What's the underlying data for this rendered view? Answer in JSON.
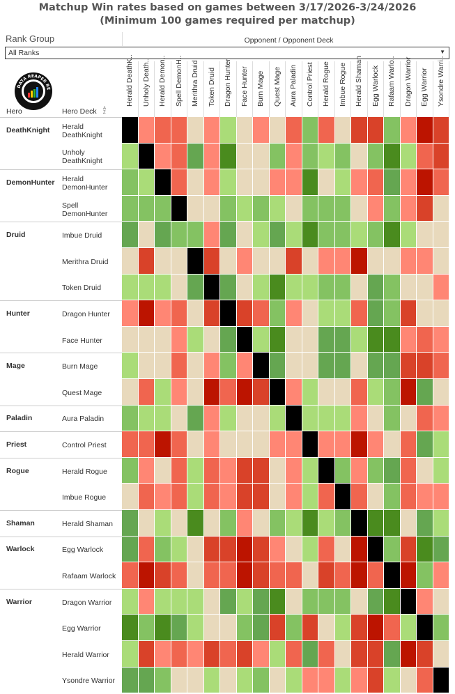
{
  "title": {
    "line1": "Matchup Win rates based on games between 3/17/2026-3/24/2026",
    "line2": "(Minimum 100 games required per matchup)"
  },
  "filter": {
    "label": "Rank Group",
    "value": "All Ranks"
  },
  "logo_text": "DATA REAPER REPORT",
  "headers": {
    "hero": "Hero",
    "deck": "Hero Deck",
    "sort": "A Z",
    "opponent": "Opponent / Opponent Deck"
  },
  "colors": {
    "black": "#000000",
    "dark_red": "#bc1400",
    "red": "#d94229",
    "salmon": "#f0654f",
    "light_salmon": "#ff8674",
    "beige": "#e8d9bc",
    "light_green": "#aadc78",
    "green": "#84c262",
    "mid_green": "#65a651",
    "dark_green": "#4a8b1e"
  },
  "groups": [
    {
      "hero": "DeathKnight",
      "decks": [
        "Herald DeathKnight",
        "Unholy DeathKnight"
      ]
    },
    {
      "hero": "DemonHunter",
      "decks": [
        "Herald DemonHunter",
        "Spell DemonHunter"
      ]
    },
    {
      "hero": "Druid",
      "decks": [
        "Imbue Druid",
        "Merithra Druid",
        "Token Druid"
      ]
    },
    {
      "hero": "Hunter",
      "decks": [
        "Dragon Hunter",
        "Face Hunter"
      ]
    },
    {
      "hero": "Mage",
      "decks": [
        "Burn Mage",
        "Quest Mage"
      ]
    },
    {
      "hero": "Paladin",
      "decks": [
        "Aura Paladin"
      ]
    },
    {
      "hero": "Priest",
      "decks": [
        "Control Priest"
      ]
    },
    {
      "hero": "Rogue",
      "decks": [
        "Herald Rogue",
        "Imbue Rogue"
      ]
    },
    {
      "hero": "Shaman",
      "decks": [
        "Herald Shaman"
      ]
    },
    {
      "hero": "Warlock",
      "decks": [
        "Egg Warlock",
        "Rafaam Warlock"
      ]
    },
    {
      "hero": "Warrior",
      "decks": [
        "Dragon Warrior",
        "Egg Warrior",
        "Herald Warrior",
        "Ysondre Warrior"
      ]
    }
  ],
  "chart_data": {
    "type": "heatmap",
    "title": "Matchup Win rates based on games between 3/17/2026-3/24/2026 (Minimum 100 games required per matchup)",
    "xlabel": "Opponent / Opponent Deck",
    "ylabel": "Hero Deck",
    "value_unit": "estimated win rate % (from color scale)",
    "columns": [
      "Herald DeathK..",
      "Unholy Death..",
      "Herald Demon..",
      "Spell DemonH..",
      "Merithra Druid",
      "Token Druid",
      "Dragon Hunter",
      "Face Hunter",
      "Burn Mage",
      "Quest Mage",
      "Aura Paladin",
      "Control Priest",
      "Herald Rogue",
      "Imbue Rogue",
      "Herald Shaman",
      "Egg Warlock",
      "Rafaam Warlo..",
      "Dragon Warrior",
      "Egg Warrior",
      "Ysondre Warri.."
    ],
    "values": [
      [
        null,
        47,
        45,
        45,
        50,
        47,
        53,
        50,
        47,
        50,
        45,
        55,
        45,
        50,
        43,
        43,
        55,
        47,
        40,
        43
      ],
      [
        53,
        null,
        47,
        45,
        57,
        47,
        60,
        50,
        50,
        55,
        47,
        55,
        53,
        55,
        50,
        55,
        60,
        53,
        45,
        43
      ],
      [
        55,
        53,
        null,
        45,
        50,
        47,
        53,
        50,
        50,
        47,
        47,
        60,
        50,
        53,
        47,
        45,
        57,
        47,
        40,
        45
      ],
      [
        55,
        55,
        55,
        null,
        50,
        50,
        55,
        53,
        55,
        53,
        50,
        55,
        55,
        55,
        50,
        47,
        55,
        47,
        43,
        50
      ],
      [
        57,
        50,
        57,
        55,
        55,
        47,
        57,
        50,
        53,
        57,
        53,
        60,
        55,
        55,
        53,
        55,
        60,
        53,
        50,
        50
      ],
      [
        50,
        43,
        50,
        50,
        null,
        43,
        50,
        47,
        50,
        50,
        43,
        50,
        47,
        47,
        40,
        50,
        50,
        47,
        47,
        50
      ],
      [
        53,
        53,
        53,
        50,
        57,
        null,
        57,
        50,
        53,
        60,
        53,
        53,
        55,
        55,
        50,
        57,
        55,
        50,
        50,
        47
      ],
      [
        47,
        40,
        47,
        45,
        50,
        43,
        null,
        43,
        45,
        55,
        47,
        50,
        53,
        53,
        45,
        57,
        55,
        43,
        50,
        50
      ],
      [
        50,
        50,
        50,
        47,
        53,
        50,
        57,
        null,
        53,
        60,
        50,
        50,
        57,
        57,
        53,
        60,
        60,
        47,
        45,
        47
      ],
      [
        53,
        50,
        50,
        45,
        50,
        47,
        55,
        47,
        null,
        57,
        50,
        50,
        57,
        57,
        50,
        57,
        57,
        43,
        43,
        45
      ],
      [
        50,
        45,
        53,
        47,
        50,
        40,
        45,
        40,
        43,
        null,
        47,
        53,
        50,
        50,
        45,
        53,
        55,
        40,
        57,
        50
      ],
      [
        55,
        53,
        53,
        50,
        57,
        47,
        53,
        50,
        50,
        53,
        null,
        53,
        53,
        53,
        47,
        50,
        55,
        50,
        45,
        47
      ],
      [
        45,
        45,
        40,
        45,
        50,
        47,
        50,
        50,
        50,
        47,
        47,
        null,
        47,
        47,
        40,
        47,
        50,
        45,
        57,
        53
      ],
      [
        55,
        47,
        50,
        45,
        53,
        45,
        47,
        43,
        43,
        50,
        47,
        53,
        null,
        55,
        47,
        55,
        57,
        45,
        50,
        53
      ],
      [
        50,
        45,
        47,
        45,
        53,
        45,
        47,
        43,
        43,
        50,
        47,
        53,
        45,
        null,
        45,
        50,
        55,
        45,
        47,
        47
      ],
      [
        57,
        50,
        53,
        50,
        60,
        50,
        55,
        47,
        50,
        55,
        53,
        60,
        53,
        55,
        null,
        60,
        60,
        50,
        57,
        53
      ],
      [
        57,
        45,
        55,
        53,
        50,
        43,
        43,
        40,
        43,
        47,
        50,
        53,
        45,
        50,
        40,
        null,
        55,
        43,
        60,
        57
      ],
      [
        45,
        40,
        43,
        45,
        50,
        45,
        45,
        40,
        43,
        45,
        45,
        50,
        43,
        45,
        40,
        45,
        null,
        40,
        55,
        47
      ],
      [
        53,
        47,
        53,
        53,
        53,
        50,
        57,
        53,
        57,
        60,
        50,
        55,
        55,
        55,
        50,
        57,
        60,
        null,
        47,
        50
      ],
      [
        60,
        55,
        60,
        57,
        53,
        50,
        50,
        55,
        57,
        43,
        55,
        43,
        50,
        53,
        43,
        40,
        45,
        53,
        null,
        55
      ],
      [
        53,
        43,
        47,
        45,
        47,
        43,
        45,
        43,
        47,
        53,
        45,
        57,
        45,
        50,
        43,
        43,
        57,
        40,
        43,
        50
      ],
      [
        57,
        57,
        55,
        50,
        50,
        53,
        50,
        53,
        55,
        50,
        53,
        47,
        47,
        53,
        47,
        43,
        53,
        50,
        45,
        null
      ]
    ],
    "null_meaning": "mirror matchup (black)"
  }
}
